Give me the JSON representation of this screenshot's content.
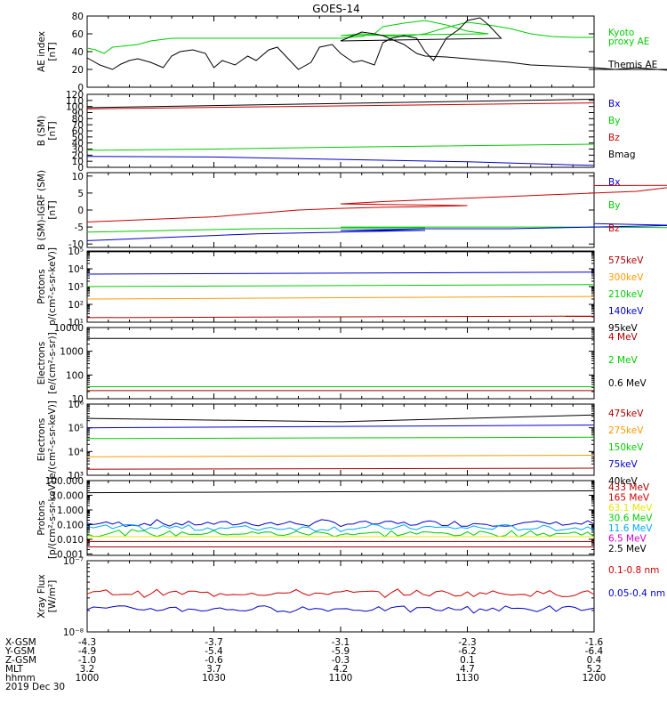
{
  "title": "GOES-14",
  "colors": {
    "black": "#000000",
    "red": "#cc0000",
    "green": "#00cc00",
    "blue": "#0000cc",
    "orange": "#ff9900",
    "yellow": "#e6e600",
    "cyan": "#00aaff",
    "magenta": "#cc00cc",
    "darkred": "#aa0000"
  },
  "chart_data": [
    {
      "id": "ae",
      "type": "line",
      "ylabel": [
        "AE index",
        "[nT]"
      ],
      "yscale": "linear",
      "ylim": [
        0,
        80
      ],
      "yticks": [
        "0",
        "20",
        "40",
        "60",
        "80"
      ],
      "legend": [
        {
          "text": "Kyoto",
          "color": "green"
        },
        {
          "text": "proxy AE",
          "color": "green"
        },
        {
          "text": "Themis AE",
          "color": "black"
        }
      ],
      "series": [
        {
          "color": "green",
          "x": [
            1000,
            1002,
            1004,
            1006,
            1008,
            1010,
            1012,
            1015,
            1020,
            1025,
            1030,
            1035,
            1040,
            1045,
            1050,
            1052,
            1055,
            1058,
            1060,
            1062,
            1065,
            1068,
            1070,
            1075,
            1080,
            1085,
            1090,
            1095,
            1100,
            1105,
            1110,
            1115,
            1120,
            1125,
            1130,
            1135,
            1140,
            1145,
            1150,
            1155,
            1160,
            1200
          ],
          "y": [
            44,
            42,
            38,
            45,
            46,
            47,
            48,
            52,
            55,
            55,
            55,
            55,
            55,
            55,
            55,
            55,
            55,
            55,
            55,
            56,
            57,
            60,
            68,
            72,
            75,
            70,
            63,
            60,
            58,
            60,
            58,
            57,
            60,
            67,
            73,
            70,
            66,
            60,
            57,
            56,
            56,
            56
          ]
        },
        {
          "color": "black",
          "x": [
            1000,
            1003,
            1006,
            1008,
            1010,
            1012,
            1015,
            1018,
            1020,
            1022,
            1025,
            1028,
            1030,
            1032,
            1035,
            1038,
            1040,
            1043,
            1045,
            1048,
            1050,
            1053,
            1055,
            1058,
            1060,
            1063,
            1065,
            1068,
            1070,
            1072,
            1075,
            1078,
            1080,
            1082,
            1085,
            1088,
            1090,
            1093,
            1095,
            1098,
            1100,
            1103,
            1105,
            1108,
            1110,
            1113,
            1115,
            1118,
            1120,
            1125,
            1130,
            1135,
            1140,
            1145,
            1150,
            1155,
            1160,
            1165,
            1170,
            1175,
            1180,
            1185,
            1190,
            1195,
            1200
          ],
          "y": [
            33,
            25,
            20,
            26,
            30,
            32,
            28,
            22,
            35,
            40,
            42,
            38,
            22,
            30,
            25,
            35,
            30,
            42,
            45,
            30,
            20,
            28,
            45,
            48,
            38,
            28,
            30,
            25,
            50,
            55,
            58,
            55,
            40,
            30,
            55,
            65,
            75,
            78,
            70,
            55,
            52,
            58,
            62,
            60,
            58,
            52,
            48,
            38,
            35,
            34,
            32,
            30,
            28,
            25,
            24,
            23,
            22,
            20,
            22,
            20,
            18,
            20,
            18,
            20,
            20
          ]
        }
      ]
    },
    {
      "id": "bsm",
      "type": "line",
      "ylabel": [
        "B (SM)",
        "[nT]"
      ],
      "yscale": "linear",
      "ylim": [
        0,
        120
      ],
      "yticks": [
        "0",
        "10",
        "20",
        "30",
        "40",
        "50",
        "60",
        "70",
        "80",
        "90",
        "100",
        "110",
        "120"
      ],
      "legend": [
        {
          "text": "Bx",
          "color": "blue"
        },
        {
          "text": "By",
          "color": "green"
        },
        {
          "text": "Bz",
          "color": "red"
        },
        {
          "text": "Bmag",
          "color": "black"
        }
      ],
      "series": [
        {
          "color": "black",
          "x": [
            1000,
            1200
          ],
          "y": [
            98,
            112
          ]
        },
        {
          "color": "red",
          "x": [
            1000,
            1200
          ],
          "y": [
            96,
            106
          ]
        },
        {
          "color": "green",
          "x": [
            1000,
            1030,
            1100,
            1200
          ],
          "y": [
            28,
            30,
            33,
            38
          ]
        },
        {
          "color": "blue",
          "x": [
            1000,
            1030,
            1100,
            1130,
            1200
          ],
          "y": [
            18,
            17,
            13,
            9,
            3
          ]
        }
      ]
    },
    {
      "id": "bigrf",
      "type": "line",
      "ylabel": [
        "B (SM)-IGRF (SM)",
        "[nT]"
      ],
      "yscale": "linear",
      "ylim": [
        -11,
        11
      ],
      "yticks": [
        "-10",
        "-5",
        "0",
        "5",
        "10"
      ],
      "legend": [
        {
          "text": "Bx",
          "color": "blue"
        },
        {
          "text": "By",
          "color": "green"
        },
        {
          "text": "Bz",
          "color": "red"
        }
      ],
      "series": [
        {
          "color": "red",
          "x": [
            1000,
            1010,
            1020,
            1030,
            1040,
            1050,
            1060,
            1070,
            1080,
            1090,
            1100,
            1110,
            1120,
            1130,
            1140,
            1150,
            1160,
            1170,
            1180,
            1190,
            1200
          ],
          "y": [
            -3.5,
            -3,
            -2.5,
            -2,
            -1,
            0,
            0.5,
            0.8,
            1,
            1.3,
            1.8,
            2.5,
            3,
            3.5,
            4,
            4.5,
            5,
            5.5,
            7,
            7.3,
            7.2
          ]
        },
        {
          "color": "green",
          "x": [
            1000,
            1020,
            1040,
            1060,
            1080,
            1100,
            1120,
            1140,
            1160,
            1180,
            1200
          ],
          "y": [
            -6.5,
            -6,
            -5.5,
            -5.3,
            -5.2,
            -5,
            -5,
            -5,
            -5,
            -5.2,
            -5
          ]
        },
        {
          "color": "blue",
          "x": [
            1000,
            1010,
            1020,
            1030,
            1040,
            1060,
            1080,
            1100,
            1120,
            1140,
            1160,
            1180,
            1200
          ],
          "y": [
            -9,
            -8.5,
            -8,
            -7.5,
            -7,
            -6.5,
            -6,
            -6,
            -5.5,
            -5.5,
            -5,
            -4.5,
            -4
          ]
        }
      ]
    },
    {
      "id": "protons_lo",
      "type": "line",
      "ylabel": [
        "Protons",
        "p/(cm²-s-sr-keV)]"
      ],
      "yscale": "log",
      "ylim": [
        10,
        100000
      ],
      "yticks": [
        "10¹",
        "10²",
        "10³",
        "10⁴",
        "10⁵"
      ],
      "legend": [
        {
          "text": "575keV",
          "color": "darkred"
        },
        {
          "text": "300keV",
          "color": "orange"
        },
        {
          "text": "210keV",
          "color": "green"
        },
        {
          "text": "140keV",
          "color": "blue"
        },
        {
          "text": "95keV",
          "color": "black"
        }
      ],
      "series": [
        {
          "color": "black",
          "x": [
            1000,
            1200
          ],
          "y": [
            90000,
            90000
          ]
        },
        {
          "color": "blue",
          "x": [
            1000,
            1200
          ],
          "y": [
            5000,
            6500
          ]
        },
        {
          "color": "green",
          "x": [
            1000,
            1200
          ],
          "y": [
            1000,
            1300
          ]
        },
        {
          "color": "orange",
          "x": [
            1000,
            1200
          ],
          "y": [
            200,
            280
          ]
        },
        {
          "color": "darkred",
          "x": [
            1000,
            1200
          ],
          "y": [
            18,
            22
          ]
        }
      ]
    },
    {
      "id": "electrons_int",
      "type": "line",
      "ylabel": [
        "Electrons",
        "[e/(cm²-s-sr)]"
      ],
      "yscale": "log",
      "ylim": [
        10,
        10000
      ],
      "yticks": [
        "10",
        "100",
        "1000",
        "10000"
      ],
      "legend": [
        {
          "text": "4 MeV",
          "color": "darkred"
        },
        {
          "text": "2 MeV",
          "color": "green"
        },
        {
          "text": "0.6 MeV",
          "color": "black"
        }
      ],
      "series": [
        {
          "color": "black",
          "x": [
            1000,
            1200
          ],
          "y": [
            3500,
            3500
          ]
        },
        {
          "color": "green",
          "x": [
            1000,
            1200
          ],
          "y": [
            32,
            32
          ]
        },
        {
          "color": "darkred",
          "x": [
            1000,
            1200
          ],
          "y": [
            22,
            22
          ]
        }
      ]
    },
    {
      "id": "electrons_diff",
      "type": "line",
      "ylabel": [
        "Electrons",
        "e/(cm²-s-sr-keV)]"
      ],
      "yscale": "log",
      "ylim": [
        1000,
        1000000
      ],
      "yticks": [
        "10³",
        "10⁴",
        "10⁵",
        "10⁶"
      ],
      "legend": [
        {
          "text": "475keV",
          "color": "darkred"
        },
        {
          "text": "275keV",
          "color": "orange"
        },
        {
          "text": "150keV",
          "color": "green"
        },
        {
          "text": "75keV",
          "color": "blue"
        },
        {
          "text": "40keV",
          "color": "black"
        }
      ],
      "series": [
        {
          "color": "black",
          "x": [
            1000,
            1100,
            1200
          ],
          "y": [
            250000,
            180000,
            350000
          ]
        },
        {
          "color": "blue",
          "x": [
            1000,
            1200
          ],
          "y": [
            100000,
            130000
          ]
        },
        {
          "color": "green",
          "x": [
            1000,
            1200
          ],
          "y": [
            35000,
            40000
          ]
        },
        {
          "color": "orange",
          "x": [
            1000,
            1200
          ],
          "y": [
            6000,
            7000
          ]
        },
        {
          "color": "darkred",
          "x": [
            1000,
            1200
          ],
          "y": [
            1800,
            2000
          ]
        }
      ]
    },
    {
      "id": "protons_hi",
      "type": "line",
      "ylabel": [
        "Protons",
        "[p/(cm²-s-sr-keV)]"
      ],
      "yscale": "log",
      "ylim": [
        0.0008,
        100
      ],
      "yticks": [
        "0.001",
        "0.010",
        "0.100",
        "1.000",
        "10.000",
        "100.000"
      ],
      "legend": [
        {
          "text": "433 MeV",
          "color": "darkred"
        },
        {
          "text": "165 MeV",
          "color": "red"
        },
        {
          "text": "63.1 MeV",
          "color": "yellow"
        },
        {
          "text": "30.6 MeV",
          "color": "green"
        },
        {
          "text": "11.6 MeV",
          "color": "cyan"
        },
        {
          "text": "6.5 MeV",
          "color": "magenta"
        },
        {
          "text": "2.5 MeV",
          "color": "black"
        }
      ],
      "series": [
        {
          "color": "black",
          "x": [
            1000,
            1200
          ],
          "y": [
            15,
            20
          ]
        },
        {
          "color": "blue",
          "noise": true,
          "x": [
            1000,
            1200
          ],
          "y": [
            0.12,
            0.12
          ]
        },
        {
          "color": "cyan",
          "noise": true,
          "x": [
            1000,
            1200
          ],
          "y": [
            0.06,
            0.06
          ]
        },
        {
          "color": "green",
          "noise": true,
          "x": [
            1000,
            1200
          ],
          "y": [
            0.025,
            0.025
          ]
        },
        {
          "color": "yellow",
          "x": [
            1000,
            1200
          ],
          "y": [
            0.015,
            0.015
          ]
        },
        {
          "color": "red",
          "x": [
            1000,
            1200
          ],
          "y": [
            0.007,
            0.007
          ]
        },
        {
          "color": "darkred",
          "x": [
            1000,
            1200
          ],
          "y": [
            0.003,
            0.003
          ]
        }
      ]
    },
    {
      "id": "xray",
      "type": "line",
      "ylabel": [
        "Xray Flux",
        "[W/m²]"
      ],
      "yscale": "log",
      "ylim": [
        1e-08,
        1e-07
      ],
      "yticks": [
        "10⁻⁸",
        "10⁻⁷"
      ],
      "legend": [
        {
          "text": "0.1-0.8 nm",
          "color": "red"
        },
        {
          "text": "0.05-0.4 nm",
          "color": "blue"
        }
      ],
      "series": [
        {
          "color": "red",
          "noise": true,
          "x": [
            1000,
            1200
          ],
          "y": [
            3.5e-08,
            3.5e-08
          ]
        },
        {
          "color": "blue",
          "noise": true,
          "x": [
            1000,
            1200
          ],
          "y": [
            2.1e-08,
            2.1e-08
          ]
        }
      ]
    }
  ],
  "x_axis": {
    "xlim": [
      1000,
      1200
    ],
    "tick_positions": [
      1000,
      1030,
      1100,
      1130,
      1200
    ],
    "rows": [
      {
        "label": "X-GSM",
        "values": [
          "-4.3",
          "-3.7",
          "-3.1",
          "-2.3",
          "-1.6"
        ]
      },
      {
        "label": "Y-GSM",
        "values": [
          "-4.9",
          "-5.4",
          "-5.9",
          "-6.2",
          "-6.4"
        ]
      },
      {
        "label": "Z-GSM",
        "values": [
          "-1.0",
          "-0.6",
          "-0.3",
          "0.1",
          "0.4"
        ]
      },
      {
        "label": "MLT",
        "values": [
          "3.2",
          "3.7",
          "4.2",
          "4.7",
          "5.2"
        ]
      },
      {
        "label": "hhmm",
        "values": [
          "1000",
          "1030",
          "1100",
          "1130",
          "1200"
        ]
      }
    ],
    "date": "2019 Dec 30"
  }
}
